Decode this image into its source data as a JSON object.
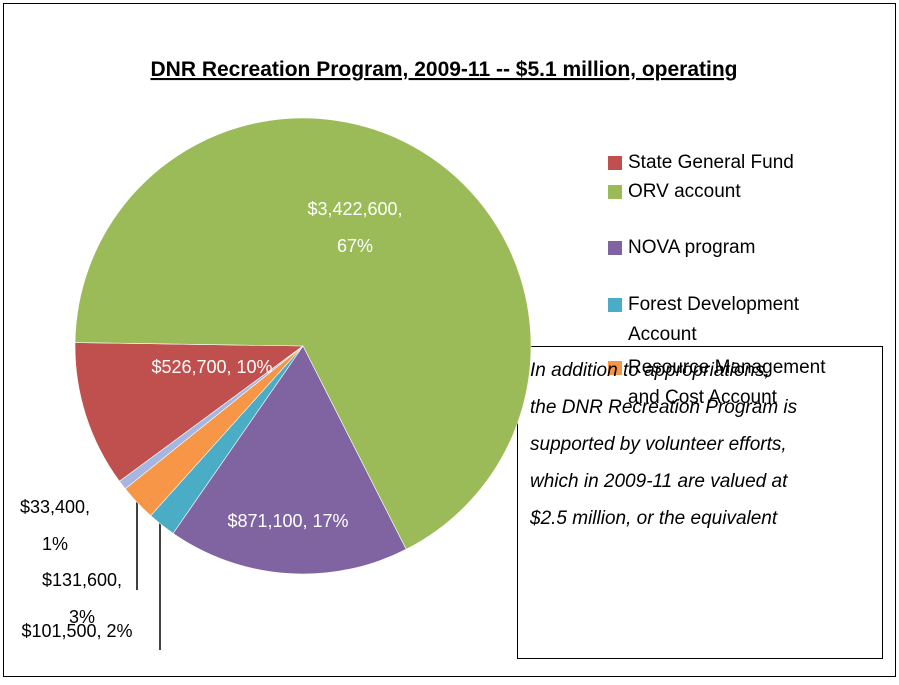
{
  "chart_data": {
    "type": "pie",
    "title": "DNR Recreation Program, 2009-11 -- $5.1 million, operating",
    "series": [
      {
        "name": "State General Fund",
        "color": "#c0504d",
        "value": 526700,
        "value_label": "$526,700, 10%"
      },
      {
        "name": "ORV account",
        "color": "#9bbb59",
        "value": 3422600,
        "value_label": "$3,422,600,\n67%"
      },
      {
        "name": "NOVA program",
        "color": "#8064a2",
        "value": 871100,
        "value_label": "$871,100, 17%"
      },
      {
        "name": "Forest Development Account",
        "color": "#4bacc6",
        "value": 101500,
        "value_label": "$101,500, 2%"
      },
      {
        "name": "Resource Management and Cost Account",
        "color": "#f79646",
        "value": 131600,
        "value_label": "$131,600,\n3%"
      },
      {
        "name": null,
        "color": "#a5b6e0",
        "value": 33400,
        "value_label": "$33,400,\n1%"
      }
    ],
    "legend": "right",
    "annotation": [
      "In addition to appropriations,",
      "the DNR Recreation Program is",
      "supported by volunteer efforts,",
      "which in 2009-11 are valued at",
      "$2.5 million, or the equivalent"
    ]
  }
}
